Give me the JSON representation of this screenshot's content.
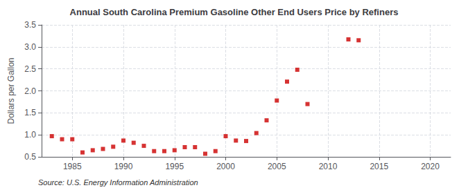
{
  "chart_data": {
    "type": "scatter",
    "title": "Annual South Carolina Premium Gasoline Other End Users Price by Refiners",
    "ylabel": "Dollars per Gallon",
    "annotations": [
      "Source: U.S. Energy Information Administration"
    ],
    "color": "#cc0000",
    "marker": "square",
    "grid": true,
    "x": [
      1983,
      1984,
      1985,
      1986,
      1987,
      1988,
      1989,
      1990,
      1991,
      1992,
      1993,
      1994,
      1995,
      1996,
      1997,
      1998,
      1999,
      2000,
      2001,
      2002,
      2003,
      2004,
      2005,
      2006,
      2007,
      2008,
      2012,
      2013
    ],
    "values": [
      0.97,
      0.9,
      0.9,
      0.6,
      0.65,
      0.68,
      0.73,
      0.87,
      0.82,
      0.75,
      0.63,
      0.63,
      0.65,
      0.72,
      0.72,
      0.57,
      0.63,
      0.97,
      0.87,
      0.86,
      1.04,
      1.33,
      1.78,
      2.21,
      2.48,
      1.7,
      3.17,
      3.15
    ],
    "xlim": [
      1982,
      2022
    ],
    "xticks": [
      1985,
      1990,
      1995,
      2000,
      2005,
      2010,
      2015,
      2020
    ],
    "ylim": [
      0.5,
      3.5
    ],
    "yticks": [
      0.5,
      {
        "value": 1.0,
        "label": "1.0"
      },
      1.5,
      {
        "value": 2.0,
        "label": "2.0"
      },
      2.5,
      {
        "value": 3.0,
        "label": "3.0"
      },
      3.5
    ]
  }
}
